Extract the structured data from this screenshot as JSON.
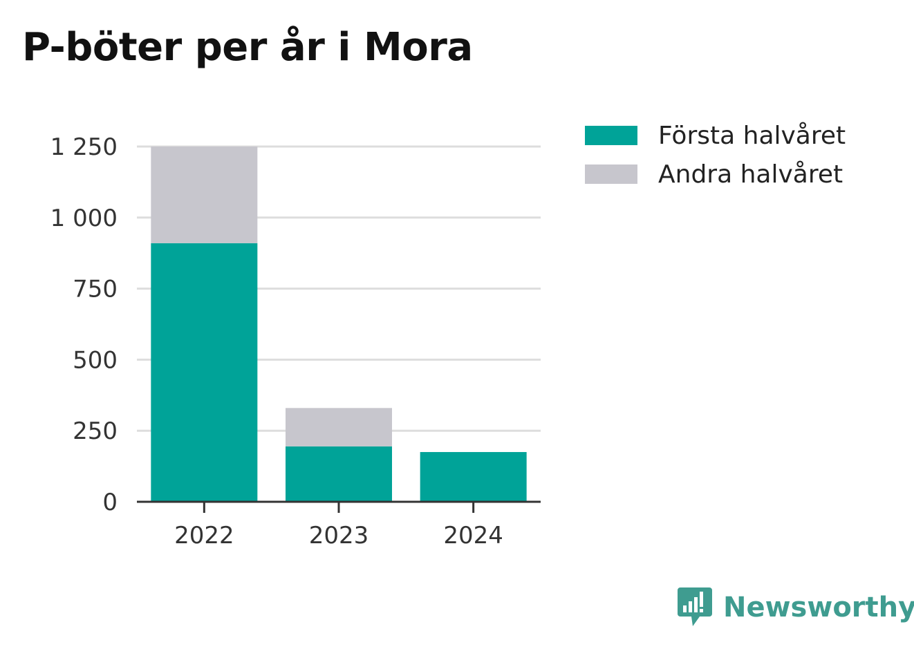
{
  "colors": {
    "first_half": "#00a398",
    "second_half": "#c7c6cd",
    "gridline": "#dddddd",
    "axis": "#333333",
    "brand": "#3f9c90"
  },
  "chart_data": {
    "type": "bar",
    "stacked": true,
    "title": "P-böter per år i Mora",
    "xlabel": "",
    "ylabel": "",
    "categories": [
      "2022",
      "2023",
      "2024"
    ],
    "series": [
      {
        "name": "Första halvåret",
        "values": [
          910,
          195,
          175
        ]
      },
      {
        "name": "Andra halvåret",
        "values": [
          340,
          135,
          0
        ]
      }
    ],
    "ylim": [
      0,
      1250
    ],
    "yticks": [
      0,
      250,
      500,
      750,
      1000,
      1250
    ],
    "ytick_labels": [
      "0",
      "250",
      "500",
      "750",
      "1 000",
      "1 250"
    ],
    "grid": true,
    "legend_position": "top-right"
  },
  "brand": {
    "name": "Newsworthy",
    "icon": "newsworthy-logo-icon"
  }
}
